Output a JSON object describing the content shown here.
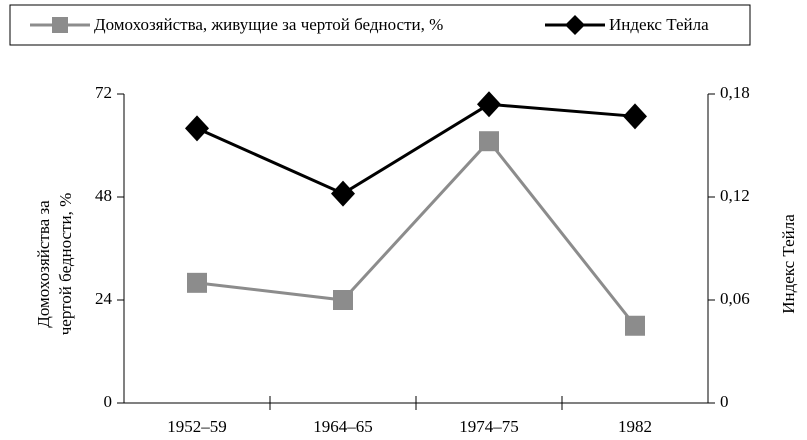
{
  "chart_data": {
    "type": "line",
    "categories": [
      "1952–59",
      "1964–65",
      "1974–75",
      "1982"
    ],
    "series": [
      {
        "name": "Домохозяйства, живущие за чертой бедности, %",
        "color": "#8c8c8c",
        "marker": "square",
        "values": [
          28,
          24,
          61,
          18
        ]
      },
      {
        "name": "Индекс Тейла",
        "color": "#000000",
        "marker": "diamond",
        "axis": "y2",
        "values": [
          0.16,
          0.122,
          0.174,
          0.167
        ]
      }
    ],
    "y_label": "Домохозяйства за чертой бедности, %",
    "y2_label": "Индекс Тейла",
    "ylim": [
      0,
      72
    ],
    "yticks": [
      0,
      24,
      48,
      72
    ],
    "y2lim": [
      0,
      0.18
    ],
    "y2ticks": [
      0,
      {
        "value": 0.06,
        "label": "0,06"
      },
      {
        "value": 0.12,
        "label": "0,12"
      },
      {
        "value": 0.18,
        "label": "0,18"
      }
    ],
    "legend": "top"
  }
}
